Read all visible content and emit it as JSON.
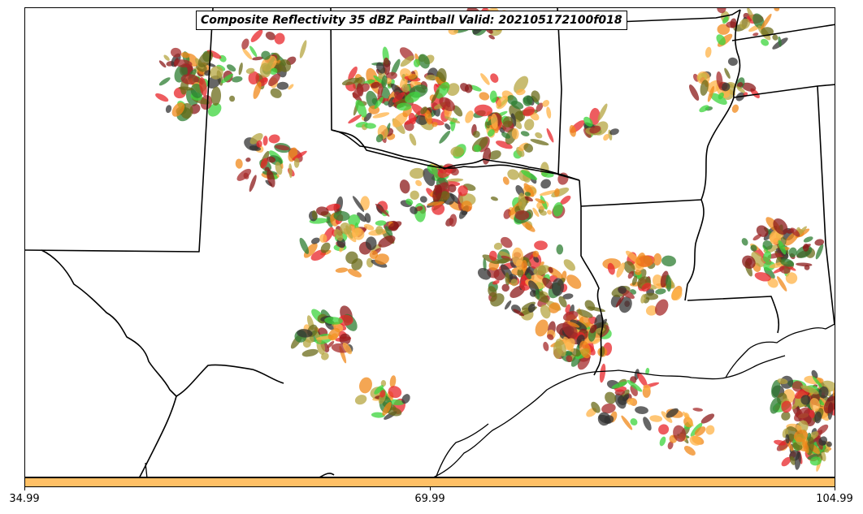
{
  "title": "Composite Reflectivity 35 dBZ Paintball Valid: 202105172100f018",
  "colorbar": {
    "color": "#FFC066",
    "tick_labels": [
      "34.99",
      "69.99",
      "104.99"
    ],
    "range": [
      34.99,
      104.99
    ]
  },
  "paintball_member_colors": [
    "#E8262A",
    "#F0881A",
    "#FFB347",
    "#3CD43C",
    "#2E7D32",
    "#8B1A1A",
    "#A52A2A",
    "#B5A642",
    "#6B6B1A",
    "#333333"
  ],
  "map": {
    "region": "South-central United States",
    "projection_visible": "Lambert conformal",
    "boundaries": [
      "state borders",
      "coastline"
    ]
  }
}
